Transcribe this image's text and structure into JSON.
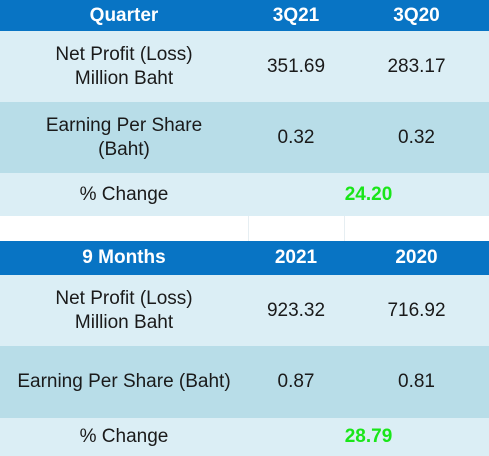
{
  "quarter_table": {
    "header": [
      "Quarter",
      "3Q21",
      "3Q20"
    ],
    "net_profit": {
      "label_line1": "Net Profit (Loss)",
      "label_line2": "Million Baht",
      "values": [
        "351.69",
        "283.17"
      ]
    },
    "eps": {
      "label_line1": "Earning Per Share",
      "label_line2": "(Baht)",
      "values": [
        "0.32",
        "0.32"
      ]
    },
    "change": {
      "label": "% Change",
      "value": "24.20"
    }
  },
  "nine_month_table": {
    "header": [
      "9 Months",
      "2021",
      "2020"
    ],
    "net_profit": {
      "label_line1": "Net Profit (Loss)",
      "label_line2": "Million Baht",
      "values": [
        "923.32",
        "716.92"
      ]
    },
    "eps": {
      "label": "Earning Per Share (Baht)",
      "values": [
        "0.87",
        "0.81"
      ]
    },
    "change": {
      "label": "% Change",
      "value": "28.79"
    }
  },
  "colors": {
    "header_bg": "#0874c4",
    "row_light": "#dbeef5",
    "row_mid": "#b8dde8",
    "change_green": "#19e619"
  }
}
